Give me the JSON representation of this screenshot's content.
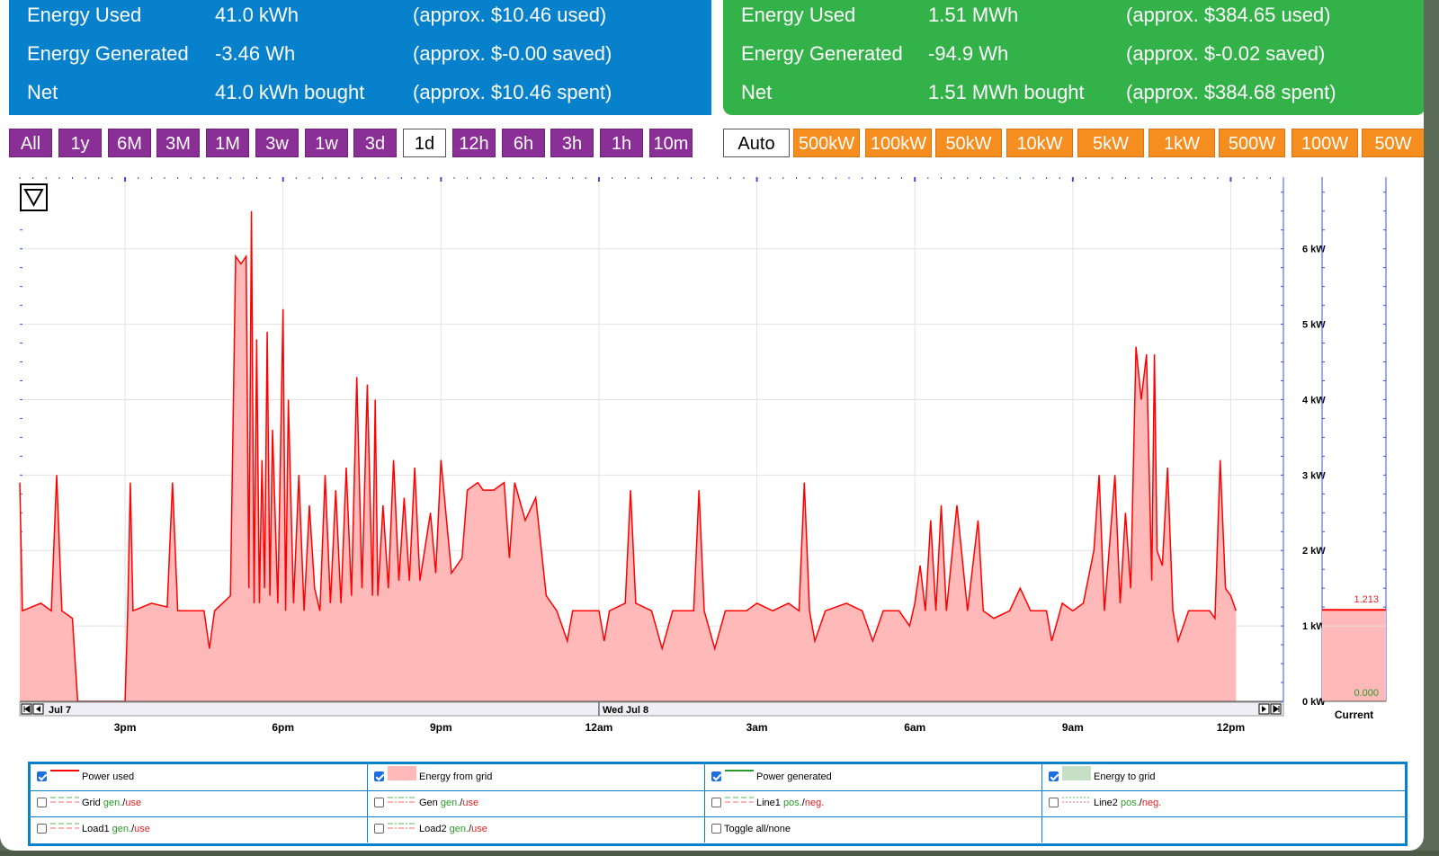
{
  "panels": {
    "left": {
      "rows": [
        {
          "label": "Energy Used",
          "value": "41.0 kWh",
          "approx": "(approx. $10.46 used)"
        },
        {
          "label": "Energy Generated",
          "value": "-3.46 Wh",
          "approx": "(approx. $-0.00 saved)"
        },
        {
          "label": "Net",
          "value": "41.0 kWh bought",
          "approx": "(approx. $10.46 spent)"
        }
      ]
    },
    "right": {
      "rows": [
        {
          "label": "Energy Used",
          "value": "1.51 MWh",
          "approx": "(approx. $384.65 used)"
        },
        {
          "label": "Energy Generated",
          "value": "-94.9 Wh",
          "approx": "(approx. $-0.02 saved)"
        },
        {
          "label": "Net",
          "value": "1.51 MWh bought",
          "approx": "(approx. $384.68 spent)"
        }
      ]
    }
  },
  "time_buttons": [
    "All",
    "1y",
    "6M",
    "3M",
    "1M",
    "3w",
    "1w",
    "3d",
    "1d",
    "12h",
    "6h",
    "3h",
    "1h",
    "10m"
  ],
  "time_selected": "1d",
  "scale_buttons": [
    "Auto",
    "500kW",
    "100kW",
    "50kW",
    "10kW",
    "5kW",
    "1kW",
    "500W",
    "100W",
    "50W"
  ],
  "scale_selected": "Auto",
  "colors": {
    "purple": "#8a2f95",
    "orange": "#f68d1f",
    "blue_panel": "#0781cb",
    "green_panel": "#34b24a",
    "power_line": "#ff0000",
    "energy_fill": "#ffb9b9"
  },
  "nav": {
    "left_date": "Jul 7",
    "mid_date": "Wed Jul 8"
  },
  "current": {
    "label": "Current",
    "value_used": "1.213",
    "value_gen": "0.000"
  },
  "legend": {
    "rows": [
      [
        {
          "checked": true,
          "label": "Power used",
          "swatch": "line-red"
        },
        {
          "checked": true,
          "label": "Energy from grid",
          "swatch": "fill-pink"
        },
        {
          "checked": true,
          "label": "Power generated",
          "swatch": "line-green"
        },
        {
          "checked": true,
          "label": "Energy to grid",
          "swatch": "fill-green"
        }
      ],
      [
        {
          "checked": false,
          "label": "Grid",
          "gen": "gen.",
          "sep": "/",
          "use": "use",
          "swatch": "dash-gr"
        },
        {
          "checked": false,
          "label": "Gen",
          "gen": "gen.",
          "sep": "/",
          "use": "use",
          "swatch": "dashdot-gr"
        },
        {
          "checked": false,
          "label": "Line1",
          "gen": "pos.",
          "sep": "/",
          "use": "neg.",
          "swatch": "dash-gr"
        },
        {
          "checked": false,
          "label": "Line2",
          "gen": "pos.",
          "sep": "/",
          "use": "neg.",
          "swatch": "dot-gr"
        }
      ],
      [
        {
          "checked": false,
          "label": "Load1",
          "gen": "gen.",
          "sep": "/",
          "use": "use",
          "swatch": "dash-gr"
        },
        {
          "checked": false,
          "label": "Load2",
          "gen": "gen.",
          "sep": "/",
          "use": "use",
          "swatch": "dashdot-gr"
        },
        {
          "checked": false,
          "label": "Toggle all/none",
          "swatch": "none",
          "plain": true
        },
        null
      ]
    ]
  },
  "chart_data": {
    "type": "area",
    "title": "",
    "xlabel": "",
    "ylabel": "",
    "x_ticks": [
      "3pm",
      "6pm",
      "9pm",
      "12am",
      "3am",
      "6am",
      "9am",
      "12pm"
    ],
    "y_ticks": [
      "0 kW",
      "1 kW",
      "2 kW",
      "3 kW",
      "4 kW",
      "5 kW",
      "6 kW"
    ],
    "ylim": [
      0,
      6.95
    ],
    "xlim_hours": [
      13.0,
      37.0
    ],
    "x_unit": "hours since 12am Jul 7",
    "series": [
      {
        "name": "Power used",
        "points": [
          [
            13.0,
            2.9
          ],
          [
            13.05,
            1.2
          ],
          [
            13.4,
            1.3
          ],
          [
            13.6,
            1.2
          ],
          [
            13.7,
            3.0
          ],
          [
            13.8,
            1.2
          ],
          [
            14.0,
            1.1
          ],
          [
            14.1,
            0.0
          ],
          [
            15.0,
            0.0
          ],
          [
            15.05,
            1.2
          ],
          [
            15.1,
            2.9
          ],
          [
            15.15,
            1.2
          ],
          [
            15.5,
            1.3
          ],
          [
            15.8,
            1.25
          ],
          [
            15.9,
            2.9
          ],
          [
            16.0,
            1.2
          ],
          [
            16.5,
            1.2
          ],
          [
            16.6,
            0.7
          ],
          [
            16.7,
            1.2
          ],
          [
            17.0,
            1.4
          ],
          [
            17.1,
            5.9
          ],
          [
            17.2,
            5.8
          ],
          [
            17.3,
            5.9
          ],
          [
            17.35,
            1.5
          ],
          [
            17.4,
            6.5
          ],
          [
            17.45,
            1.3
          ],
          [
            17.5,
            4.8
          ],
          [
            17.55,
            1.3
          ],
          [
            17.6,
            3.2
          ],
          [
            17.65,
            1.5
          ],
          [
            17.7,
            4.9
          ],
          [
            17.75,
            1.4
          ],
          [
            17.8,
            3.6
          ],
          [
            17.9,
            1.3
          ],
          [
            18.0,
            5.2
          ],
          [
            18.05,
            1.2
          ],
          [
            18.1,
            4.0
          ],
          [
            18.2,
            1.3
          ],
          [
            18.3,
            3.0
          ],
          [
            18.4,
            1.2
          ],
          [
            18.5,
            2.6
          ],
          [
            18.6,
            1.5
          ],
          [
            18.7,
            1.2
          ],
          [
            18.8,
            3.0
          ],
          [
            18.9,
            1.3
          ],
          [
            19.0,
            2.8
          ],
          [
            19.1,
            1.3
          ],
          [
            19.2,
            3.1
          ],
          [
            19.3,
            1.4
          ],
          [
            19.4,
            4.3
          ],
          [
            19.5,
            1.5
          ],
          [
            19.6,
            4.2
          ],
          [
            19.7,
            1.4
          ],
          [
            19.75,
            4.0
          ],
          [
            19.8,
            1.4
          ],
          [
            19.9,
            2.6
          ],
          [
            20.0,
            1.5
          ],
          [
            20.1,
            3.2
          ],
          [
            20.2,
            1.6
          ],
          [
            20.3,
            2.7
          ],
          [
            20.4,
            1.6
          ],
          [
            20.5,
            3.1
          ],
          [
            20.6,
            1.6
          ],
          [
            20.8,
            2.5
          ],
          [
            20.9,
            1.7
          ],
          [
            21.0,
            3.2
          ],
          [
            21.2,
            1.7
          ],
          [
            21.4,
            1.9
          ],
          [
            21.5,
            2.8
          ],
          [
            21.7,
            2.9
          ],
          [
            21.8,
            2.8
          ],
          [
            22.0,
            2.8
          ],
          [
            22.2,
            2.9
          ],
          [
            22.3,
            1.9
          ],
          [
            22.4,
            2.9
          ],
          [
            22.6,
            2.4
          ],
          [
            22.8,
            2.7
          ],
          [
            23.0,
            1.4
          ],
          [
            23.2,
            1.2
          ],
          [
            23.4,
            0.8
          ],
          [
            23.5,
            1.2
          ],
          [
            23.8,
            1.2
          ],
          [
            24.0,
            1.2
          ],
          [
            24.1,
            0.8
          ],
          [
            24.2,
            1.2
          ],
          [
            24.5,
            1.3
          ],
          [
            24.6,
            2.8
          ],
          [
            24.7,
            1.3
          ],
          [
            25.0,
            1.2
          ],
          [
            25.2,
            0.7
          ],
          [
            25.4,
            1.2
          ],
          [
            25.8,
            1.2
          ],
          [
            25.9,
            2.8
          ],
          [
            26.0,
            1.2
          ],
          [
            26.2,
            0.7
          ],
          [
            26.4,
            1.2
          ],
          [
            26.8,
            1.2
          ],
          [
            27.0,
            1.3
          ],
          [
            27.3,
            1.2
          ],
          [
            27.6,
            1.3
          ],
          [
            27.8,
            1.2
          ],
          [
            27.9,
            2.9
          ],
          [
            28.0,
            1.2
          ],
          [
            28.1,
            0.8
          ],
          [
            28.3,
            1.2
          ],
          [
            28.7,
            1.3
          ],
          [
            29.0,
            1.2
          ],
          [
            29.2,
            0.8
          ],
          [
            29.4,
            1.2
          ],
          [
            29.7,
            1.2
          ],
          [
            29.9,
            1.0
          ],
          [
            30.0,
            1.3
          ],
          [
            30.1,
            1.8
          ],
          [
            30.2,
            1.2
          ],
          [
            30.3,
            2.4
          ],
          [
            30.4,
            1.2
          ],
          [
            30.5,
            2.6
          ],
          [
            30.6,
            1.2
          ],
          [
            30.8,
            2.6
          ],
          [
            31.0,
            1.2
          ],
          [
            31.2,
            2.4
          ],
          [
            31.3,
            1.2
          ],
          [
            31.5,
            1.1
          ],
          [
            31.8,
            1.2
          ],
          [
            32.0,
            1.5
          ],
          [
            32.2,
            1.2
          ],
          [
            32.5,
            1.2
          ],
          [
            32.6,
            0.8
          ],
          [
            32.8,
            1.3
          ],
          [
            33.0,
            1.2
          ],
          [
            33.2,
            1.3
          ],
          [
            33.4,
            2.0
          ],
          [
            33.5,
            3.0
          ],
          [
            33.6,
            1.2
          ],
          [
            33.8,
            3.0
          ],
          [
            33.9,
            1.3
          ],
          [
            34.0,
            2.5
          ],
          [
            34.1,
            1.5
          ],
          [
            34.2,
            4.7
          ],
          [
            34.3,
            4.0
          ],
          [
            34.4,
            4.6
          ],
          [
            34.5,
            1.6
          ],
          [
            34.55,
            4.6
          ],
          [
            34.6,
            2.0
          ],
          [
            34.7,
            1.8
          ],
          [
            34.8,
            3.1
          ],
          [
            34.9,
            1.2
          ],
          [
            35.0,
            0.8
          ],
          [
            35.2,
            1.2
          ],
          [
            35.6,
            1.2
          ],
          [
            35.7,
            1.1
          ],
          [
            35.8,
            3.2
          ],
          [
            35.9,
            1.5
          ],
          [
            36.0,
            1.4
          ],
          [
            36.1,
            1.2
          ]
        ]
      }
    ],
    "grid": true,
    "legend": "bottom"
  }
}
